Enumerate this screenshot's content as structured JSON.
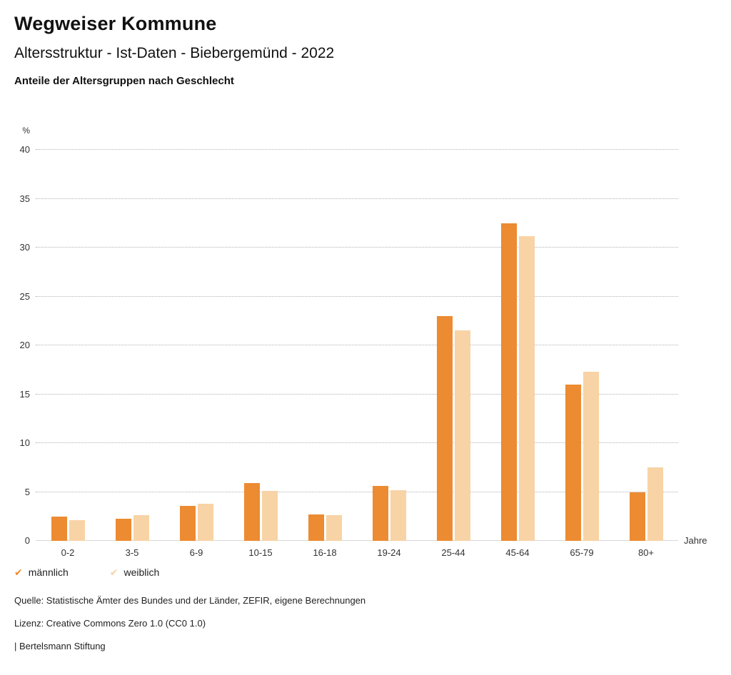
{
  "header": {
    "title": "Wegweiser Kommune",
    "subtitle": "Altersstruktur - Ist-Daten - Biebergemünd - 2022",
    "chart_heading": "Anteile der Altersgruppen nach Geschlecht"
  },
  "chart_data": {
    "type": "bar",
    "categories": [
      "0-2",
      "3-5",
      "6-9",
      "10-15",
      "16-18",
      "19-24",
      "25-44",
      "45-64",
      "65-79",
      "80+"
    ],
    "series": [
      {
        "name": "männlich",
        "color": "#ec8b31",
        "values": [
          2.5,
          2.3,
          3.6,
          5.9,
          2.7,
          5.6,
          23.0,
          32.5,
          16.0,
          5.0
        ]
      },
      {
        "name": "weiblich",
        "color": "#f8d3a6",
        "values": [
          2.1,
          2.6,
          3.8,
          5.1,
          2.6,
          5.2,
          21.5,
          31.2,
          17.3,
          7.5
        ]
      }
    ],
    "title": "Anteile der Altersgruppen nach Geschlecht",
    "xlabel": "Jahre",
    "ylabel": "%",
    "ylim": [
      0,
      40
    ],
    "yticks": [
      0,
      5,
      10,
      15,
      20,
      25,
      30,
      35,
      40
    ],
    "grid": "horizontal-dotted",
    "legend_position": "bottom-left"
  },
  "legend": {
    "items": [
      {
        "label": "männlich",
        "color": "#ec8b31",
        "icon": "checkmark-icon"
      },
      {
        "label": "weiblich",
        "color": "#f8d3a6",
        "icon": "checkmark-icon"
      }
    ]
  },
  "footer": {
    "source": "Quelle: Statistische Ämter des Bundes und der Länder, ZEFIR, eigene Berechnungen",
    "license": "Lizenz: Creative Commons Zero 1.0 (CC0 1.0)",
    "attribution": "| Bertelsmann Stiftung"
  }
}
